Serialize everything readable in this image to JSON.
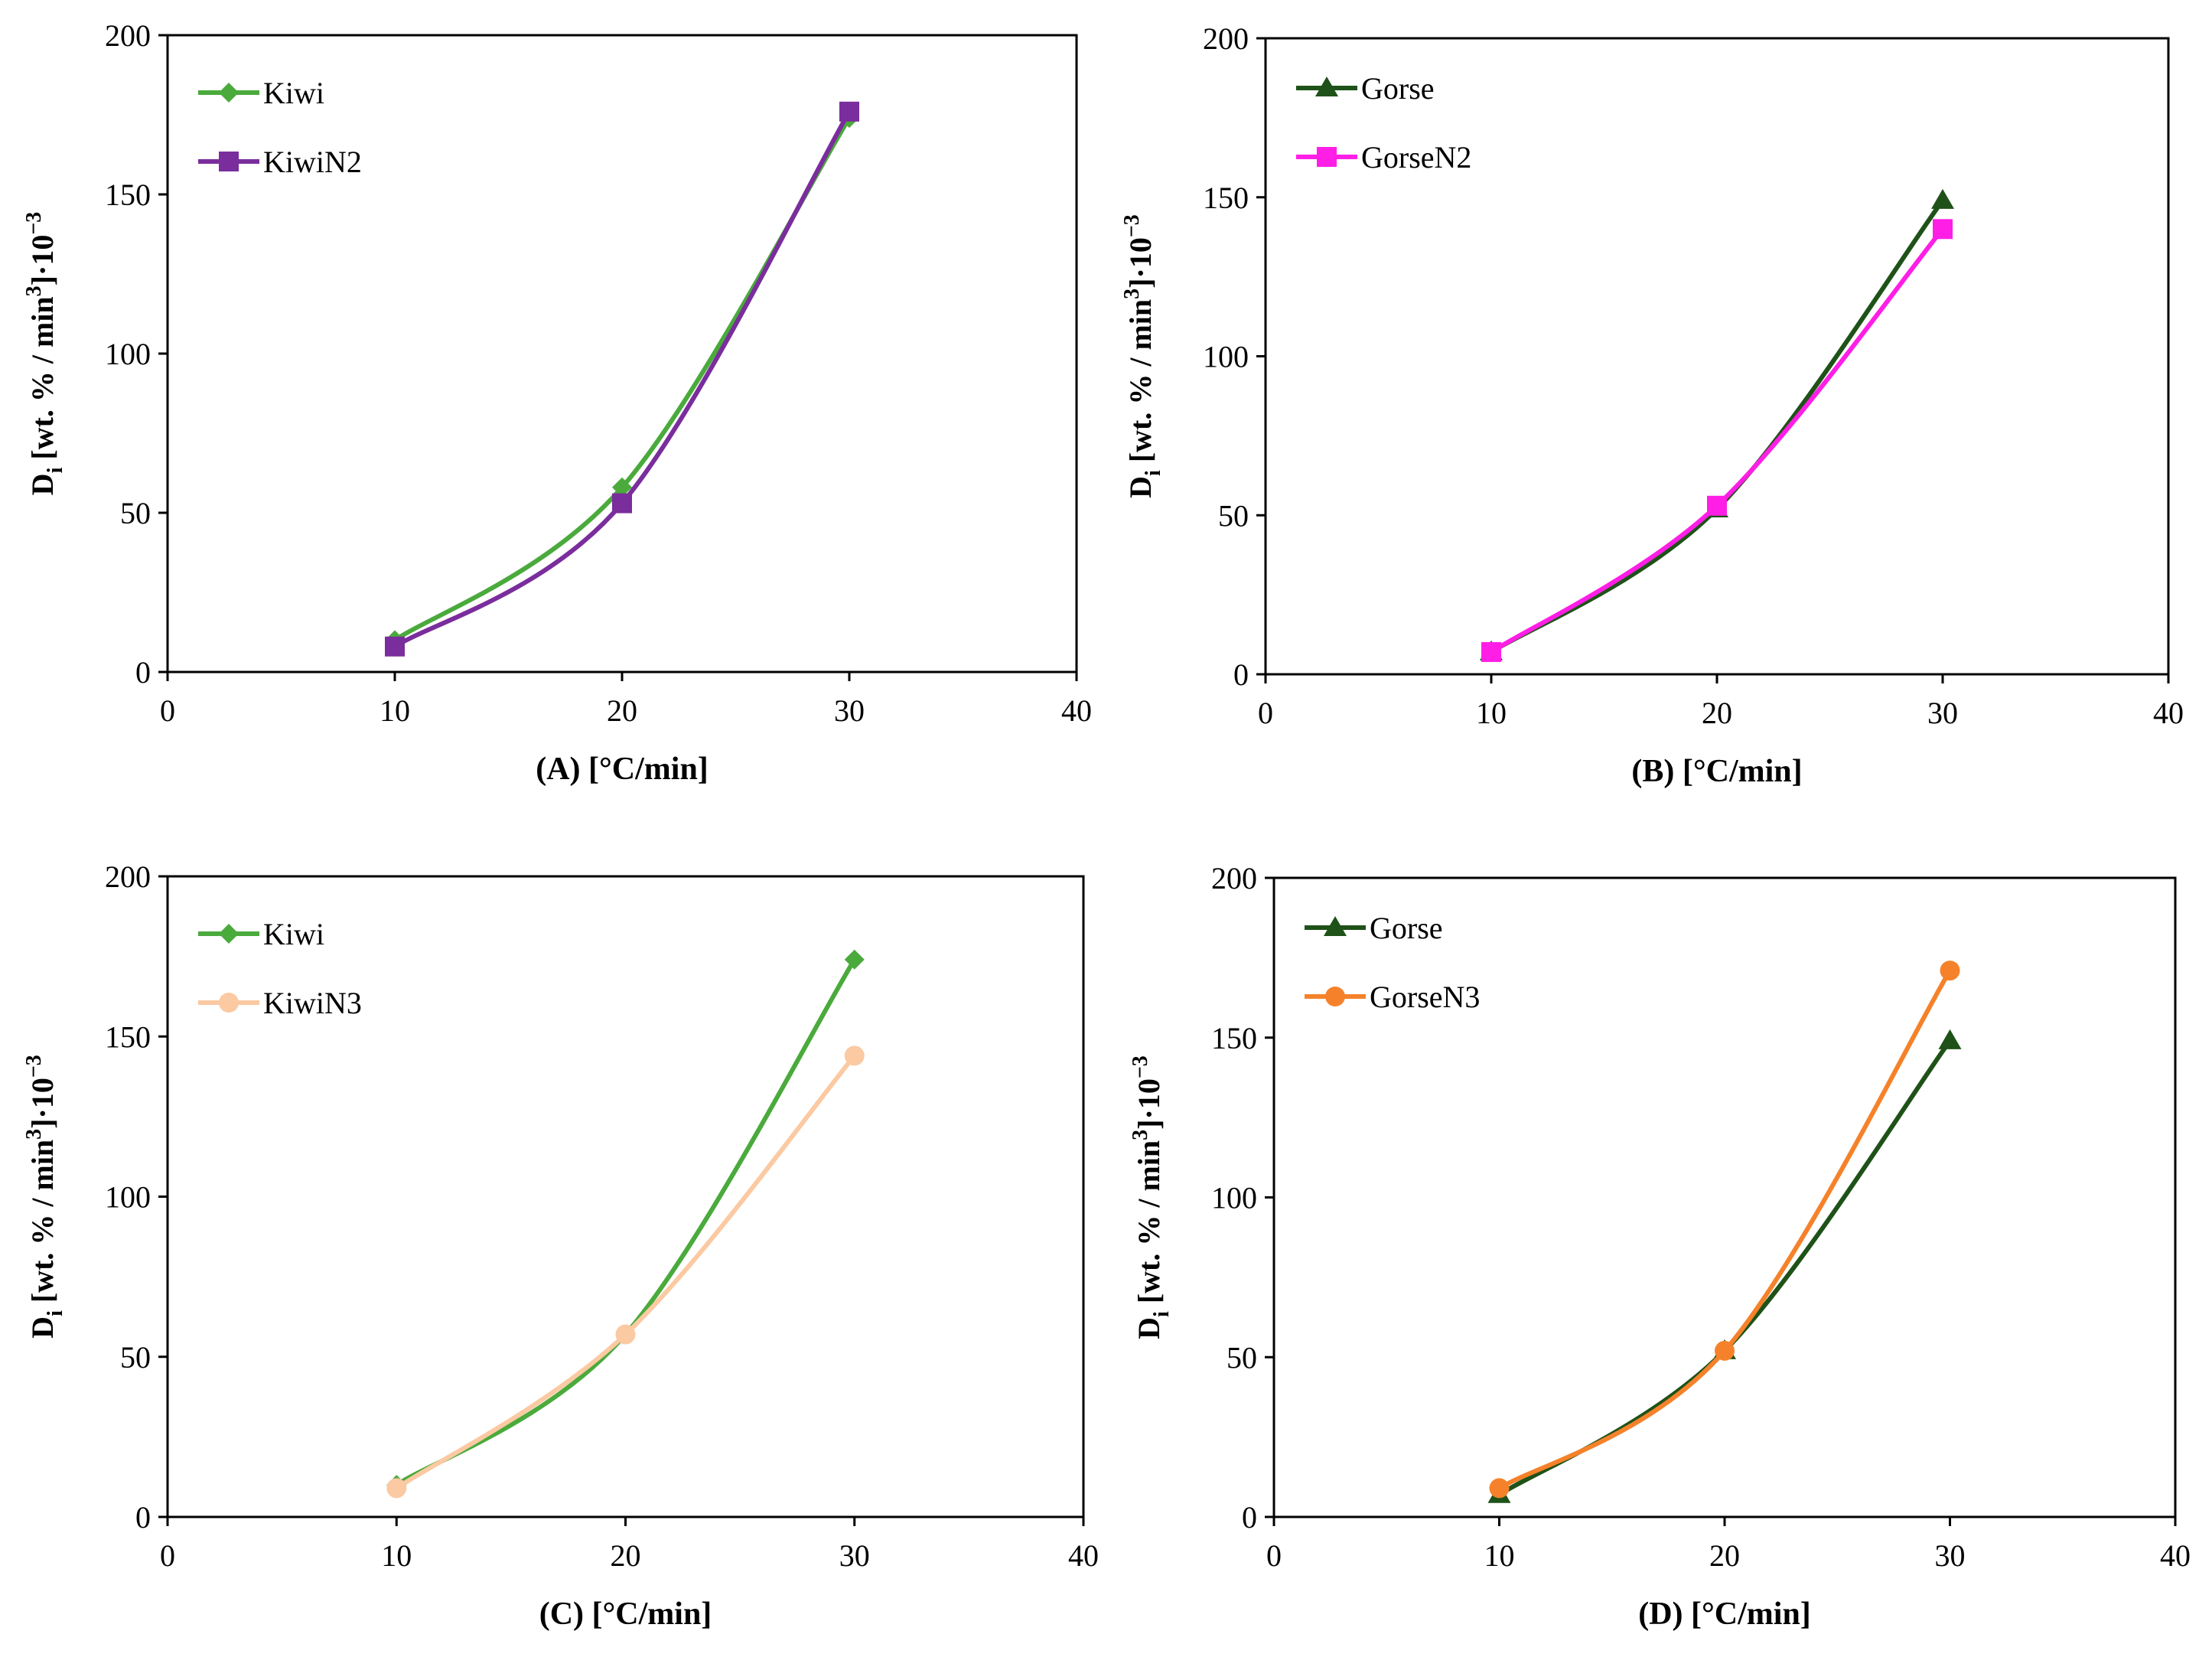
{
  "y_label": {
    "main": "D",
    "sub": "i",
    "mid": " [wt. % / min",
    "sup1": "3",
    "end": "]·10",
    "sup2": "−3"
  },
  "chart_data": [
    {
      "type": "line",
      "panel": "A",
      "xlabel": "(A) [°C/min]",
      "xlim": [
        0,
        40
      ],
      "ylim": [
        0,
        200
      ],
      "xticks": [
        "0",
        "10",
        "20",
        "30",
        "40"
      ],
      "yticks": [
        "0",
        "50",
        "100",
        "150",
        "200"
      ],
      "legend_position": "top-left",
      "x": [
        10,
        20,
        30
      ],
      "series": [
        {
          "name": "Kiwi",
          "values": [
            10,
            58,
            174
          ],
          "color": "#4aaa3c",
          "marker": "diamond"
        },
        {
          "name": "KiwiN2",
          "values": [
            8,
            53,
            176
          ],
          "color": "#7a2d9c",
          "marker": "square"
        }
      ]
    },
    {
      "type": "line",
      "panel": "B",
      "xlabel": "(B) [°C/min]",
      "xlim": [
        0,
        40
      ],
      "ylim": [
        0,
        200
      ],
      "xticks": [
        "0",
        "10",
        "20",
        "30",
        "40"
      ],
      "yticks": [
        "0",
        "50",
        "100",
        "150",
        "200"
      ],
      "legend_position": "top-left",
      "x": [
        10,
        20,
        30
      ],
      "series": [
        {
          "name": "Gorse",
          "values": [
            7,
            52,
            149
          ],
          "color": "#1e5218",
          "marker": "triangle"
        },
        {
          "name": "GorseN2",
          "values": [
            7,
            53,
            140
          ],
          "color": "#ff1ee6",
          "marker": "square"
        }
      ]
    },
    {
      "type": "line",
      "panel": "C",
      "xlabel": "(C) [°C/min]",
      "xlim": [
        0,
        40
      ],
      "ylim": [
        0,
        200
      ],
      "xticks": [
        "0",
        "10",
        "20",
        "30",
        "40"
      ],
      "yticks": [
        "0",
        "50",
        "100",
        "150",
        "200"
      ],
      "legend_position": "top-left",
      "x": [
        10,
        20,
        30
      ],
      "series": [
        {
          "name": "Kiwi",
          "values": [
            10,
            57,
            174
          ],
          "color": "#4aaa3c",
          "marker": "diamond"
        },
        {
          "name": "KiwiN3",
          "values": [
            9,
            57,
            144
          ],
          "color": "#fbc9a2",
          "marker": "circle"
        }
      ]
    },
    {
      "type": "line",
      "panel": "D",
      "xlabel": "(D) [°C/min]",
      "xlim": [
        0,
        40
      ],
      "ylim": [
        0,
        200
      ],
      "xticks": [
        "0",
        "10",
        "20",
        "30",
        "40"
      ],
      "yticks": [
        "0",
        "50",
        "100",
        "150",
        "200"
      ],
      "legend_position": "top-left",
      "x": [
        10,
        20,
        30
      ],
      "series": [
        {
          "name": "Gorse",
          "values": [
            7,
            52,
            149
          ],
          "color": "#1e5218",
          "marker": "triangle"
        },
        {
          "name": "GorseN3",
          "values": [
            9,
            52,
            171
          ],
          "color": "#f5822a",
          "marker": "circle"
        }
      ]
    }
  ]
}
